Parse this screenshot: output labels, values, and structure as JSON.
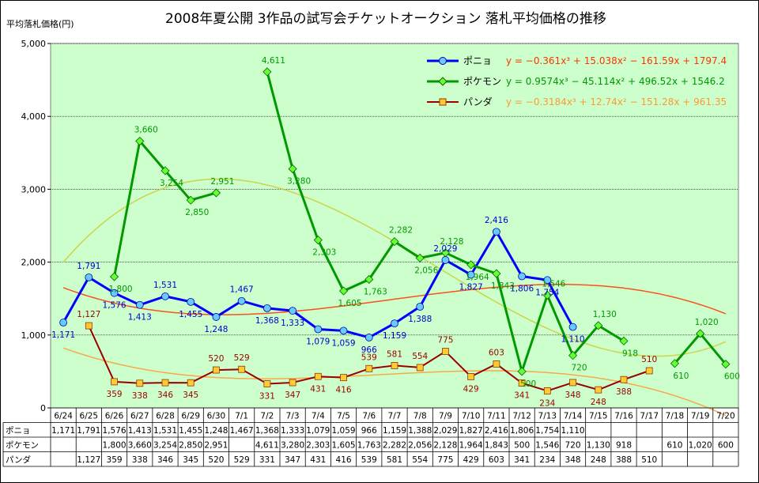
{
  "chart_data": {
    "type": "line",
    "title": "2008年夏公開 3作品の試写会チケットオークション 落札平均価格の推移",
    "ylabel": "平均落札価格(円)",
    "ylim": [
      0,
      5000
    ],
    "yticks": [
      0,
      1000,
      2000,
      3000,
      4000,
      5000
    ],
    "ytick_labels": [
      "0",
      "1,000",
      "2,000",
      "3,000",
      "4,000",
      "5,000"
    ],
    "grid": "horizontal",
    "legend_position": "top-right",
    "categories": [
      "6/24",
      "6/25",
      "6/26",
      "6/27",
      "6/28",
      "6/29",
      "6/30",
      "7/1",
      "7/2",
      "7/3",
      "7/4",
      "7/5",
      "7/6",
      "7/7",
      "7/8",
      "7/9",
      "7/10",
      "7/11",
      "7/12",
      "7/13",
      "7/14",
      "7/15",
      "7/16",
      "7/17",
      "7/18",
      "7/19",
      "7/20"
    ],
    "series": [
      {
        "name": "ポニョ",
        "color": "#0000ff",
        "marker_color": "#66ccff",
        "marker": "circle",
        "values": [
          1171,
          1791,
          1576,
          1413,
          1531,
          1455,
          1248,
          1467,
          1368,
          1333,
          1079,
          1059,
          966,
          1159,
          1388,
          2029,
          1827,
          2416,
          1806,
          1754,
          1110,
          null,
          null,
          null,
          null,
          null,
          null
        ],
        "table_values": [
          "1,171",
          "1,791",
          "1,576",
          "1,413",
          "1,531",
          "1,455",
          "1,248",
          "1,467",
          "1,368",
          "1,333",
          "1,079",
          "1,059",
          "966",
          "1,159",
          "1,388",
          "2,029",
          "1,827",
          "2,416",
          "1,806",
          "1,754",
          "1,110",
          "",
          "",
          "",
          "",
          "",
          ""
        ],
        "trendline": "y = −0.361x³ + 15.038x² − 161.59x + 1797.4",
        "trend_coeffs": [
          -0.361,
          15.038,
          -161.59,
          1797.4
        ],
        "trend_color": "#ff3300"
      },
      {
        "name": "ポケモン",
        "color": "#009900",
        "marker_color": "#66ff33",
        "marker": "diamond",
        "values": [
          null,
          null,
          1800,
          3660,
          3254,
          2850,
          2951,
          null,
          4611,
          3280,
          2303,
          1605,
          1763,
          2282,
          2056,
          2128,
          1964,
          1843,
          500,
          1546,
          720,
          1130,
          918,
          null,
          610,
          1020,
          600
        ],
        "table_values": [
          "",
          "",
          "1,800",
          "3,660",
          "3,254",
          "2,850",
          "2,951",
          "",
          "4,611",
          "3,280",
          "2,303",
          "1,605",
          "1,763",
          "2,282",
          "2,056",
          "2,128",
          "1,964",
          "1,843",
          "500",
          "1,546",
          "720",
          "1,130",
          "918",
          "",
          "610",
          "1,020",
          "600"
        ],
        "trendline": "y = 0.9574x³ − 45.114x² + 496.52x + 1546.2",
        "trend_coeffs": [
          0.9574,
          -45.114,
          496.52,
          1546.2
        ],
        "trend_color": "#cccc33"
      },
      {
        "name": "パンダ",
        "color": "#990000",
        "marker_color": "#ffcc33",
        "marker": "square",
        "values": [
          null,
          1127,
          359,
          338,
          346,
          345,
          520,
          529,
          331,
          347,
          431,
          416,
          539,
          581,
          554,
          775,
          429,
          603,
          341,
          234,
          348,
          248,
          388,
          510,
          null,
          null,
          null
        ],
        "table_values": [
          "",
          "1,127",
          "359",
          "338",
          "346",
          "345",
          "520",
          "529",
          "331",
          "347",
          "431",
          "416",
          "539",
          "581",
          "554",
          "775",
          "429",
          "603",
          "341",
          "234",
          "348",
          "248",
          "388",
          "510",
          "",
          "",
          ""
        ],
        "trendline": "y = −0.3184x³ + 12.74x² − 151.28x + 961.35",
        "trend_coeffs": [
          -0.3184,
          12.74,
          -151.28,
          961.35
        ],
        "trend_color": "#ff9933"
      }
    ]
  }
}
